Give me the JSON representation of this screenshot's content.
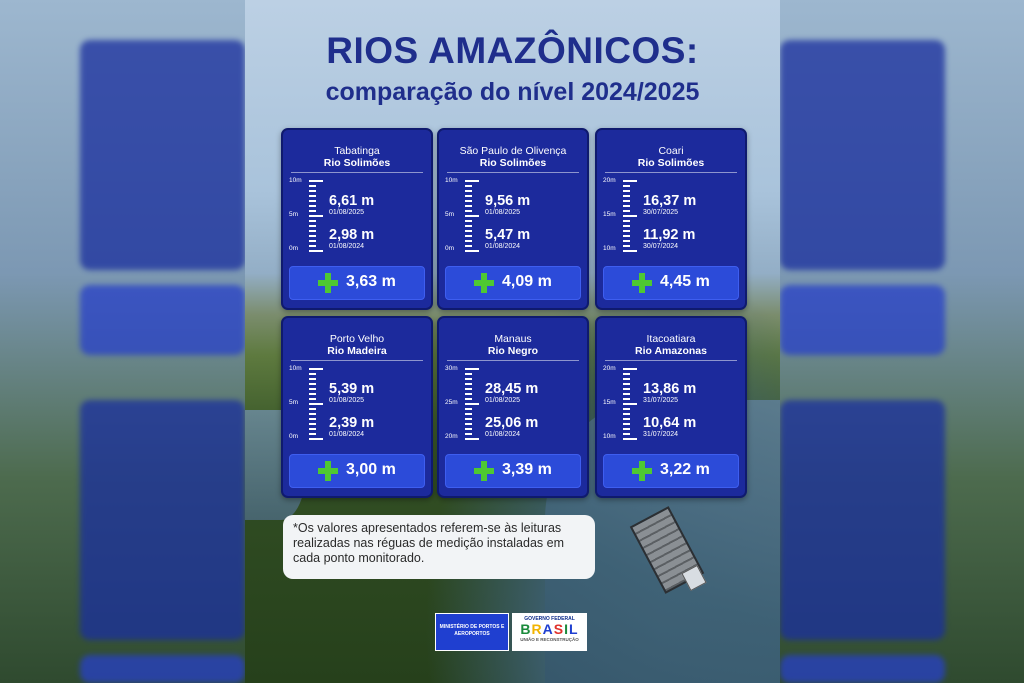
{
  "header": {
    "title": "RIOS AMAZÔNICOS:",
    "subtitle": "comparação do nível 2024/2025"
  },
  "cards": [
    {
      "city": "Tabatinga",
      "river": "Rio Solimões",
      "scale": [
        "10m",
        "5m",
        "0m"
      ],
      "v2025": "6,61 m",
      "d2025": "01/08/2025",
      "v2024": "2,98 m",
      "d2024": "01/08/2024",
      "delta": "3,63 m"
    },
    {
      "city": "São Paulo de Olivença",
      "river": "Rio Solimões",
      "scale": [
        "10m",
        "5m",
        "0m"
      ],
      "v2025": "9,56 m",
      "d2025": "01/08/2025",
      "v2024": "5,47 m",
      "d2024": "01/08/2024",
      "delta": "4,09 m"
    },
    {
      "city": "Coari",
      "river": "Rio Solimões",
      "scale": [
        "20m",
        "15m",
        "10m"
      ],
      "v2025": "16,37 m",
      "d2025": "30/07/2025",
      "v2024": "11,92 m",
      "d2024": "30/07/2024",
      "delta": "4,45 m"
    },
    {
      "city": "Porto Velho",
      "river": "Rio Madeira",
      "scale": [
        "10m",
        "5m",
        "0m"
      ],
      "v2025": "5,39 m",
      "d2025": "01/08/2025",
      "v2024": "2,39 m",
      "d2024": "01/08/2024",
      "delta": "3,00 m"
    },
    {
      "city": "Manaus",
      "river": "Rio Negro",
      "scale": [
        "30m",
        "25m",
        "20m"
      ],
      "v2025": "28,45 m",
      "d2025": "01/08/2025",
      "v2024": "25,06 m",
      "d2024": "01/08/2024",
      "delta": "3,39 m"
    },
    {
      "city": "Itacoatiara",
      "river": "Rio Amazonas",
      "scale": [
        "20m",
        "15m",
        "10m"
      ],
      "v2025": "13,86 m",
      "d2025": "31/07/2025",
      "v2024": "10,64 m",
      "d2024": "31/07/2024",
      "delta": "3,22 m"
    }
  ],
  "note": "*Os valores apresentados referem-se às leituras realizadas nas réguas de medição instaladas em cada ponto monitorado.",
  "logos": {
    "ministry": "MINISTÉRIO DE PORTOS E AEROPORTOS",
    "gov_top": "GOVERNO FEDERAL",
    "gov_main": "BRASIL",
    "gov_sub": "UNIÃO E RECONSTRUÇÃO"
  },
  "colors": {
    "card": "#1c2a9c",
    "title": "#1f2e8c",
    "plus": "#4ec832",
    "delta_bg": "#2c4bd9"
  }
}
